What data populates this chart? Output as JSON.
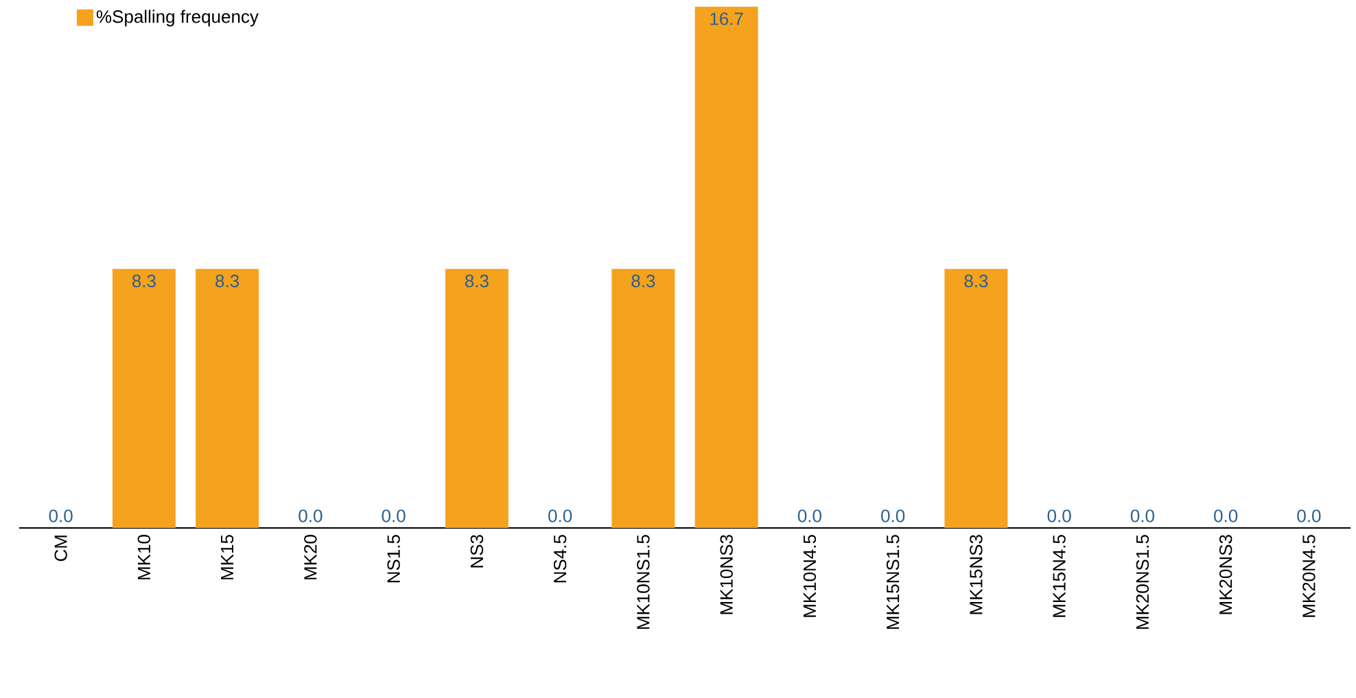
{
  "chart_data": {
    "type": "bar",
    "categories": [
      "CM",
      "MK10",
      "MK15",
      "MK20",
      "NS1.5",
      "NS3",
      "NS4.5",
      "MK10NS1.5",
      "MK10NS3",
      "MK10N4.5",
      "MK15NS1.5",
      "MK15NS3",
      "MK15N4.5",
      "MK20NS1.5",
      "MK20NS3",
      "MK20N4.5"
    ],
    "series": [
      {
        "name": "%Spalling frequency",
        "color": "#f5a21e",
        "values": [
          0,
          8.3,
          8.3,
          0,
          0,
          8.3,
          0,
          8.3,
          16.7,
          0,
          0,
          8.3,
          0,
          0,
          0,
          0
        ],
        "value_labels": [
          "0.0",
          "8.3",
          "8.3",
          "0.0",
          "0.0",
          "8.3",
          "0.0",
          "8.3",
          "16.7",
          "0.0",
          "0.0",
          "8.3",
          "0.0",
          "0.0",
          "0.0",
          "0.0"
        ]
      }
    ],
    "legend": "top left"
  }
}
